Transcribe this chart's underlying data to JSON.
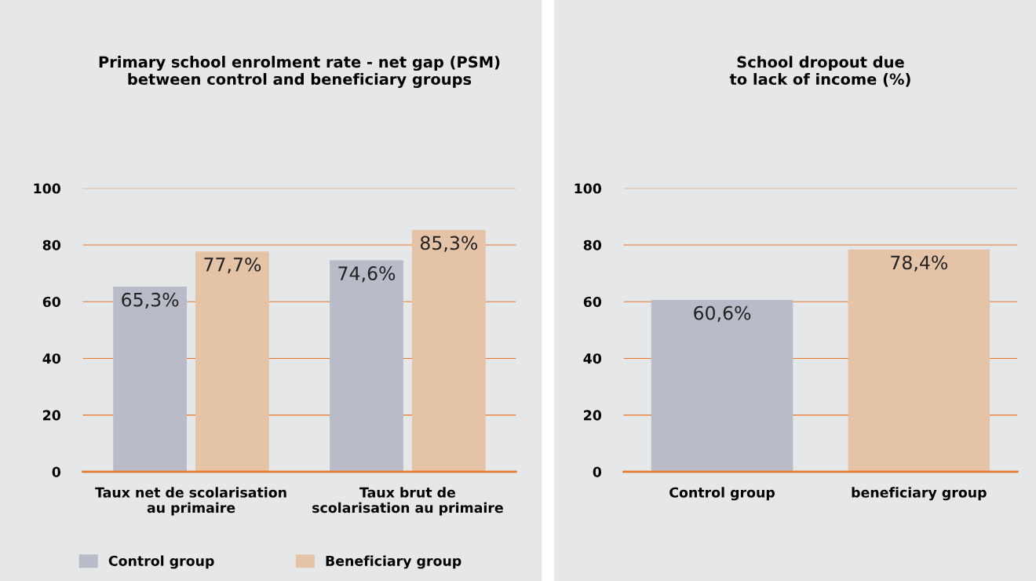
{
  "chart_data": [
    {
      "type": "bar",
      "title": "Primary school enrolment rate - net gap (PSM)\nbetween control and beneficiary groups",
      "categories": [
        "Taux net de scolarisation\nau primaire",
        "Taux brut de\nscolarisation au primaire"
      ],
      "series": [
        {
          "name": "Control group",
          "color": "#babbc8",
          "values": [
            65.3,
            74.6
          ],
          "value_labels": [
            "65,3%",
            "74,6%"
          ]
        },
        {
          "name": "Beneficiary group",
          "color": "#e5c3a6",
          "values": [
            77.7,
            85.3
          ],
          "value_labels": [
            "77,7%",
            "85,3%"
          ]
        }
      ],
      "ylim": [
        0,
        100
      ],
      "yticks": [
        0,
        20,
        40,
        60,
        80,
        100
      ],
      "grid": "y",
      "legend": "bottom"
    },
    {
      "type": "bar",
      "title": "School dropout due\nto lack of income (%)",
      "categories": [
        "Control group",
        "beneficiary group"
      ],
      "values": [
        60.6,
        78.4
      ],
      "value_labels": [
        "60,6%",
        "78,4%"
      ],
      "colors": [
        "#babbc8",
        "#e5c3a6"
      ],
      "ylim": [
        0,
        100
      ],
      "yticks": [
        0,
        20,
        40,
        60,
        80,
        100
      ],
      "grid": "y"
    }
  ]
}
